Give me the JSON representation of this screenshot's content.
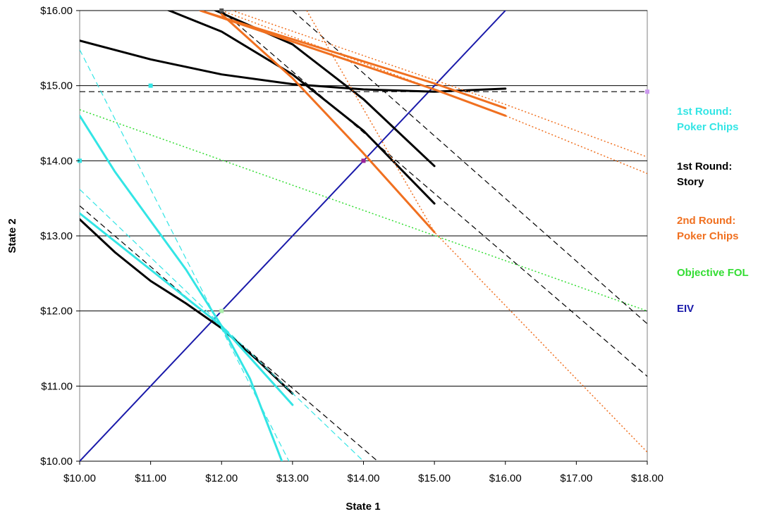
{
  "chart_data": {
    "type": "line",
    "xlabel": "State 1",
    "ylabel": "State 2",
    "xlim": [
      10,
      18
    ],
    "ylim": [
      10,
      16
    ],
    "x_ticks": [
      "$10.00",
      "$11.00",
      "$12.00",
      "$13.00",
      "$14.00",
      "$15.00",
      "$16.00",
      "$17.00",
      "$18.00"
    ],
    "y_ticks": [
      "$10.00",
      "$11.00",
      "$12.00",
      "$13.00",
      "$14.00",
      "$15.00",
      "$16.00"
    ],
    "grid": "horizontal",
    "legend_position": "right",
    "legend": [
      {
        "key": "poker1",
        "line1": "1st Round:",
        "line2": "Poker Chips",
        "color": "#33e5e5"
      },
      {
        "key": "story1",
        "line1": "1st Round:",
        "line2": "Story",
        "color": "#000000"
      },
      {
        "key": "poker2",
        "line1": "2nd Round:",
        "line2": "Poker Chips",
        "color": "#f07020"
      },
      {
        "key": "fol",
        "line1": "Objective FOL",
        "line2": "",
        "color": "#33dd33"
      },
      {
        "key": "eiv",
        "line1": "EIV",
        "line2": "",
        "color": "#1a1aaa"
      }
    ],
    "series": [
      {
        "group": "eiv",
        "style": "solid",
        "points": [
          [
            10,
            10
          ],
          [
            16,
            16
          ]
        ]
      },
      {
        "group": "fol",
        "style": "dotted",
        "points": [
          [
            10,
            14.68
          ],
          [
            18,
            12
          ]
        ]
      },
      {
        "group": "story1",
        "style": "dashed",
        "points": [
          [
            10,
            14.92
          ],
          [
            18,
            14.92
          ]
        ]
      },
      {
        "group": "story1",
        "style": "solid",
        "points": [
          [
            10,
            15.6
          ],
          [
            11,
            15.35
          ],
          [
            12,
            15.15
          ],
          [
            13,
            15.02
          ],
          [
            14,
            14.95
          ],
          [
            15,
            14.92
          ],
          [
            16,
            14.96
          ]
        ]
      },
      {
        "group": "story1",
        "style": "solid",
        "points": [
          [
            10,
            13.22
          ],
          [
            10.5,
            12.78
          ],
          [
            11,
            12.4
          ],
          [
            11.5,
            12.1
          ],
          [
            12,
            11.77
          ],
          [
            12.5,
            11.35
          ],
          [
            13,
            10.9
          ]
        ]
      },
      {
        "group": "story1",
        "style": "dashed",
        "points": [
          [
            10,
            13.4
          ],
          [
            14.2,
            10
          ]
        ]
      },
      {
        "group": "story1",
        "style": "solid",
        "points": [
          [
            11.0,
            16.1
          ],
          [
            12,
            15.72
          ],
          [
            13,
            15.15
          ],
          [
            14,
            14.4
          ],
          [
            15,
            13.43
          ]
        ]
      },
      {
        "group": "story1",
        "style": "solid",
        "points": [
          [
            11.8,
            16.05
          ],
          [
            13,
            15.55
          ],
          [
            14,
            14.82
          ],
          [
            15,
            13.93
          ]
        ]
      },
      {
        "group": "story1",
        "style": "dashed",
        "points": [
          [
            12,
            16
          ],
          [
            18,
            11.13
          ]
        ]
      },
      {
        "group": "story1",
        "style": "dashed",
        "points": [
          [
            13,
            16
          ],
          [
            18,
            11.83
          ]
        ]
      },
      {
        "group": "poker1",
        "style": "solid",
        "points": [
          [
            10,
            14.6
          ],
          [
            10.5,
            13.85
          ],
          [
            11,
            13.2
          ],
          [
            11.5,
            12.55
          ],
          [
            12,
            11.8
          ],
          [
            12.4,
            11.1
          ],
          [
            12.85,
            10
          ]
        ]
      },
      {
        "group": "poker1",
        "style": "solid",
        "points": [
          [
            10,
            13.3
          ],
          [
            11,
            12.55
          ],
          [
            12,
            11.8
          ],
          [
            13,
            10.75
          ]
        ]
      },
      {
        "group": "poker1",
        "style": "dashed",
        "points": [
          [
            10,
            15.48
          ],
          [
            12.95,
            10
          ]
        ]
      },
      {
        "group": "poker1",
        "style": "dashed",
        "points": [
          [
            10,
            13.62
          ],
          [
            14,
            10
          ]
        ]
      },
      {
        "group": "poker2",
        "style": "solid",
        "points": [
          [
            11.7,
            16
          ],
          [
            15,
            15.03
          ],
          [
            16,
            14.7
          ]
        ]
      },
      {
        "group": "poker2",
        "style": "solid",
        "points": [
          [
            11.7,
            16
          ],
          [
            15,
            14.95
          ],
          [
            16,
            14.6
          ]
        ]
      },
      {
        "group": "poker2",
        "style": "solid",
        "points": [
          [
            12,
            15.95
          ],
          [
            13,
            15.1
          ],
          [
            14,
            14.1
          ],
          [
            15,
            13.05
          ]
        ]
      },
      {
        "group": "poker2",
        "style": "dotted",
        "points": [
          [
            12,
            16.05
          ],
          [
            16,
            14.75
          ],
          [
            18,
            14.05
          ]
        ]
      },
      {
        "group": "poker2",
        "style": "dotted",
        "points": [
          [
            12,
            16.0
          ],
          [
            16,
            14.6
          ],
          [
            18,
            13.83
          ]
        ]
      },
      {
        "group": "poker2",
        "style": "dotted",
        "points": [
          [
            13.2,
            16.0
          ],
          [
            15,
            13.05
          ],
          [
            18,
            10.12
          ]
        ]
      }
    ],
    "markers": [
      {
        "x": 11,
        "y": 15,
        "color": "#33e5e5"
      },
      {
        "x": 10,
        "y": 14,
        "color": "#33e5e5"
      },
      {
        "x": 12,
        "y": 12,
        "color": "#aaeeaa"
      },
      {
        "x": 14,
        "y": 14,
        "color": "#992299"
      },
      {
        "x": 12,
        "y": 16,
        "color": "#555555"
      },
      {
        "x": 18,
        "y": 14.92,
        "color": "#cc99ee"
      }
    ]
  }
}
